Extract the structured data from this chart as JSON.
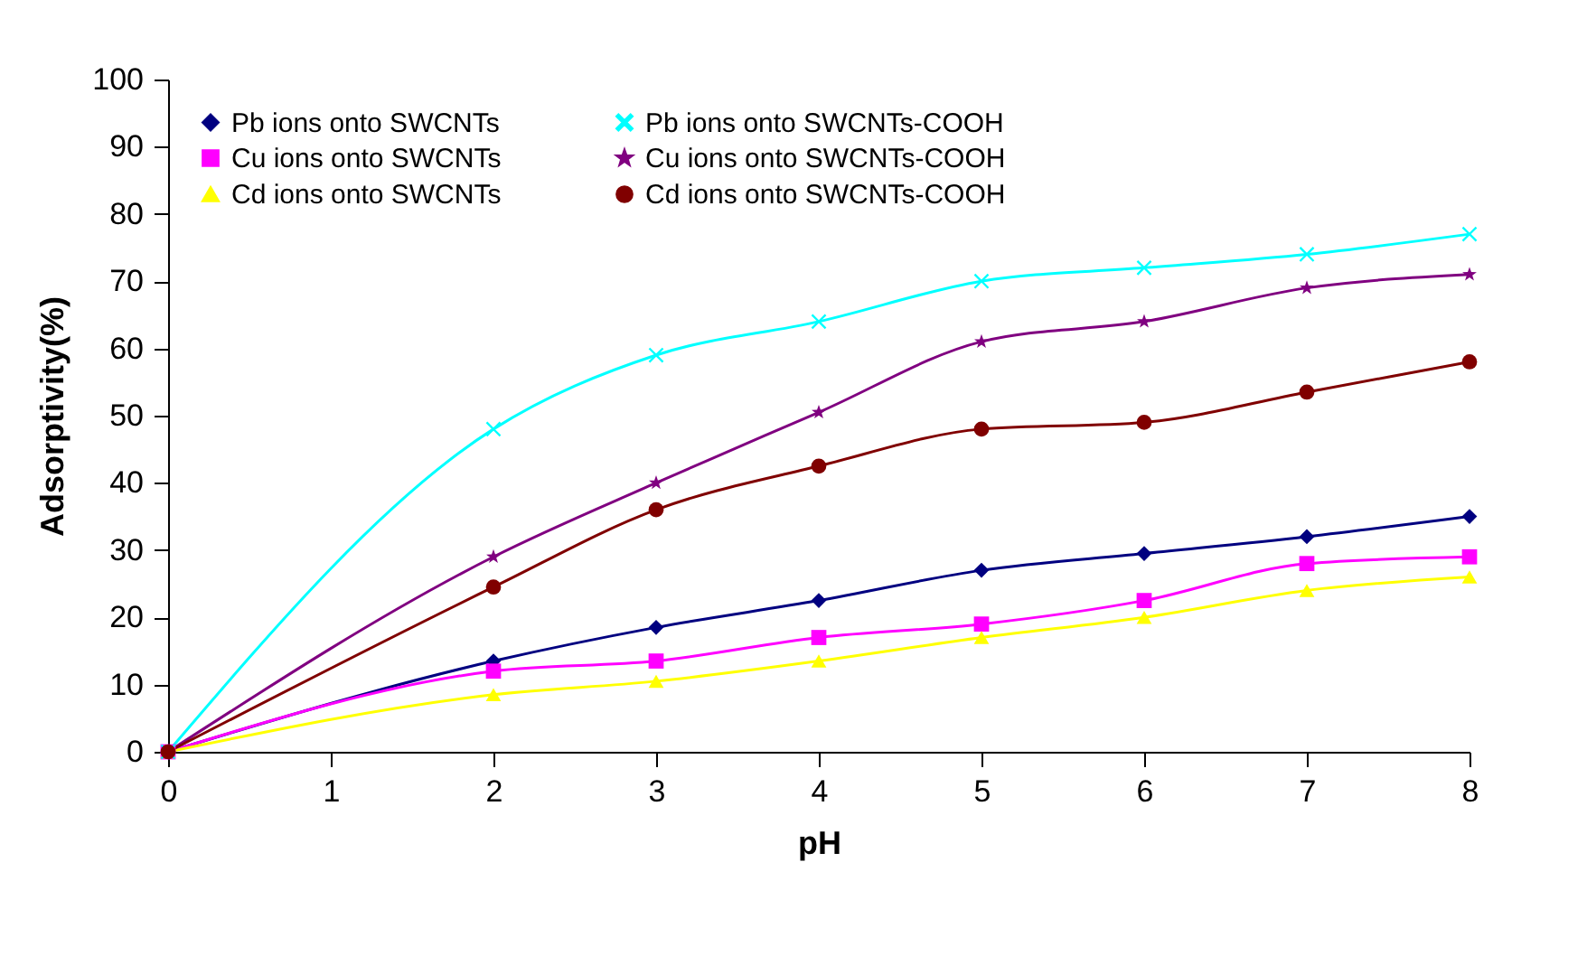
{
  "chart_data": {
    "type": "line",
    "xlabel": "pH",
    "ylabel": "Adsorptivity(%)",
    "x": [
      0,
      2,
      3,
      4,
      5,
      6,
      7,
      8
    ],
    "xlim": [
      0,
      8
    ],
    "xticks": [
      0,
      1,
      2,
      3,
      4,
      5,
      6,
      7,
      8
    ],
    "ylim": [
      0,
      100
    ],
    "yticks": [
      0,
      10,
      20,
      30,
      40,
      50,
      60,
      70,
      80,
      90,
      100
    ],
    "grid": false,
    "legend": "top",
    "series": [
      {
        "name": "Pb ions onto SWCNTs",
        "color": "#000080",
        "marker": "diamond",
        "values": [
          0,
          13.5,
          18.5,
          22.5,
          27,
          29.5,
          32,
          35
        ]
      },
      {
        "name": "Cu ions onto SWCNTs",
        "color": "#ff00ff",
        "marker": "square",
        "values": [
          0,
          12,
          13.5,
          17,
          19,
          22.5,
          28,
          29
        ]
      },
      {
        "name": "Cd ions onto SWCNTs",
        "color": "#ffff00",
        "marker": "triangle",
        "values": [
          0,
          8.5,
          10.5,
          13.5,
          17,
          20,
          24,
          26
        ]
      },
      {
        "name": "Pb ions onto SWCNTs-COOH",
        "color": "#00ffff",
        "marker": "cross",
        "values": [
          0,
          48,
          59,
          64,
          70,
          72,
          74,
          77
        ]
      },
      {
        "name": "Cu  ions onto SWCNTs-COOH",
        "color": "#800080",
        "marker": "star",
        "values": [
          0,
          29,
          40,
          50.5,
          61,
          64,
          69,
          71
        ]
      },
      {
        "name": "Cd  ions onto SWCNTs-COOH",
        "color": "#800000",
        "marker": "circle",
        "values": [
          0,
          24.5,
          36,
          42.5,
          48,
          49,
          53.5,
          58
        ]
      }
    ]
  }
}
